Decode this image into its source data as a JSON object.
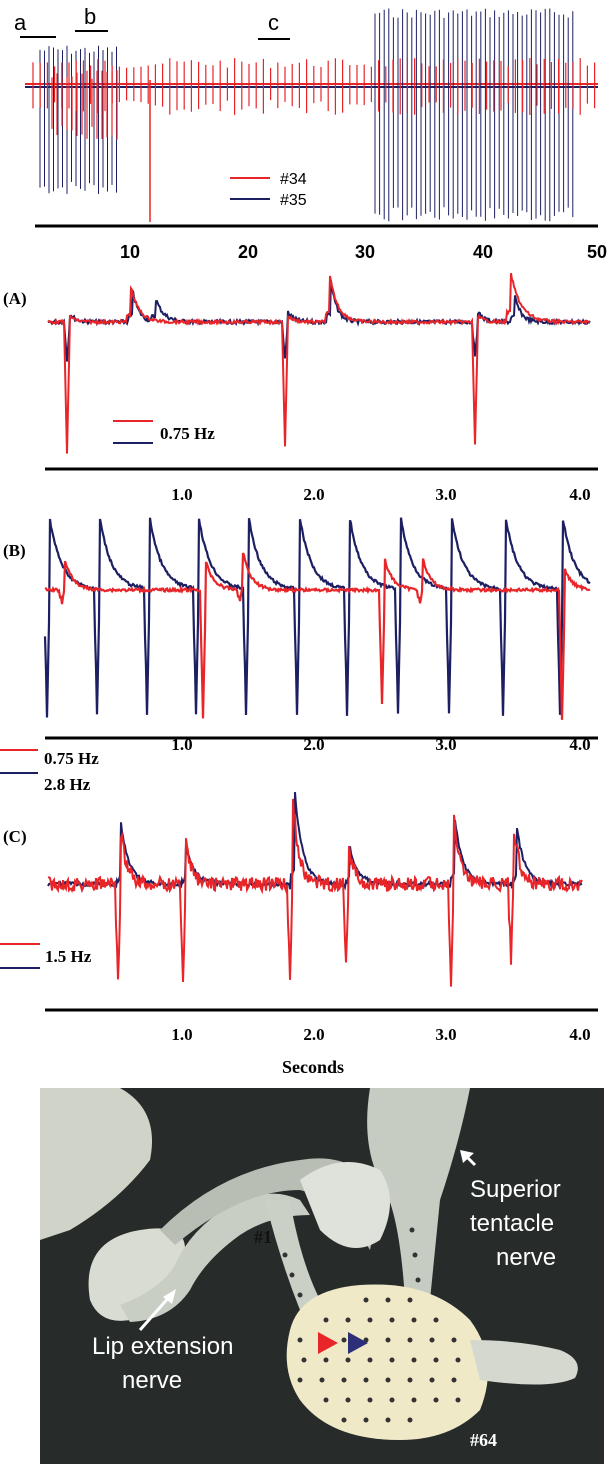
{
  "panel_top": {
    "markers": [
      "a",
      "b",
      "c"
    ],
    "legend": [
      "#34",
      "#35"
    ],
    "ticks": [
      "10",
      "20",
      "30",
      "40",
      "50"
    ]
  },
  "panel_A": {
    "label": "(A)",
    "legend": "0.75 Hz",
    "ticks": [
      "1.0",
      "2.0",
      "3.0",
      "4.0"
    ]
  },
  "panel_B": {
    "label": "(B)",
    "legend": [
      "0.75 Hz",
      "2.8 Hz"
    ],
    "ticks": [
      "1.0",
      "2.0",
      "3.0",
      "4.0"
    ]
  },
  "panel_C": {
    "label": "(C)",
    "legend": "1.5 Hz",
    "ticks": [
      "1.0",
      "2.0",
      "3.0",
      "4.0"
    ],
    "axis_label": "Seconds"
  },
  "photo": {
    "superior_label": [
      "Superior",
      "tentacle",
      "nerve"
    ],
    "lip_label": [
      "Lip extension",
      "nerve"
    ],
    "electrode_first": "#1",
    "electrode_last": "#64"
  }
}
